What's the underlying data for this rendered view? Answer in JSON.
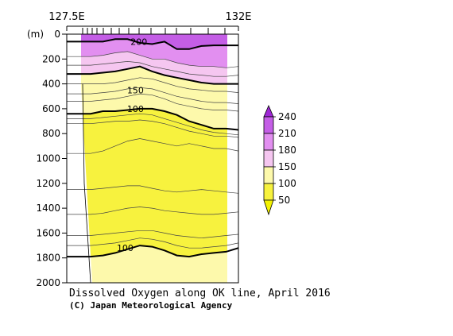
{
  "chart_data": {
    "type": "heatmap",
    "title": "Dissolved Oxygen along OK line, April 2016",
    "credit": "(C) Japan Meteorological Agency",
    "x_range_labels": [
      "127.5E",
      "132E"
    ],
    "y_unit_label": "(m)",
    "y_ticks": [
      0,
      200,
      400,
      600,
      800,
      1000,
      1200,
      1400,
      1600,
      1800,
      2000
    ],
    "ylim": [
      0,
      2000
    ],
    "colorbar_levels": [
      50,
      100,
      150,
      180,
      210,
      240
    ],
    "colors": {
      "lt50": "#f3f200",
      "b50_100": "#f7f23e",
      "b100_150": "#fdf9ab",
      "b150_180": "#f5c6f0",
      "b180_210": "#e28ff0",
      "b210_240": "#c45ee6",
      "gt240": "#9f26d6"
    },
    "contour_labels": [
      {
        "value": "200",
        "x_frac": 0.42,
        "depth": 60
      },
      {
        "value": "150",
        "x_frac": 0.4,
        "depth": 450
      },
      {
        "value": "100",
        "x_frac": 0.4,
        "depth": 600
      },
      {
        "value": "100",
        "x_frac": 0.34,
        "depth": 1720
      }
    ],
    "bold_contours": [
      {
        "value": 200,
        "depths": [
          60,
          60,
          40,
          40,
          70,
          80,
          60,
          120,
          120,
          95,
          90,
          90,
          90
        ]
      },
      {
        "value": 150,
        "depths": [
          320,
          310,
          300,
          280,
          260,
          300,
          330,
          350,
          370,
          390,
          400,
          400,
          400
        ]
      },
      {
        "value": 100,
        "depths": [
          640,
          620,
          620,
          610,
          600,
          600,
          620,
          650,
          700,
          730,
          760,
          760,
          770
        ]
      },
      {
        "value": 100,
        "depths": [
          1790,
          1780,
          1760,
          1730,
          1700,
          1710,
          1740,
          1780,
          1790,
          1770,
          1760,
          1750,
          1720
        ]
      }
    ],
    "thin_contours": [
      {
        "depths": [
          180,
          170,
          150,
          140,
          170,
          200,
          200,
          230,
          250,
          260,
          260,
          270,
          260
        ]
      },
      {
        "depths": [
          250,
          240,
          230,
          220,
          230,
          260,
          280,
          300,
          320,
          330,
          340,
          340,
          330
        ]
      },
      {
        "depths": [
          400,
          400,
          390,
          370,
          350,
          360,
          390,
          420,
          440,
          450,
          460,
          460,
          470
        ]
      },
      {
        "depths": [
          480,
          470,
          460,
          440,
          430,
          440,
          470,
          500,
          520,
          540,
          550,
          550,
          560
        ]
      },
      {
        "depths": [
          540,
          530,
          520,
          500,
          480,
          490,
          520,
          560,
          580,
          600,
          610,
          610,
          620
        ]
      },
      {
        "depths": [
          680,
          670,
          660,
          650,
          640,
          650,
          680,
          710,
          740,
          770,
          790,
          800,
          810
        ]
      },
      {
        "depths": [
          720,
          710,
          700,
          700,
          690,
          700,
          720,
          750,
          780,
          800,
          820,
          820,
          830
        ]
      },
      {
        "depths": [
          960,
          940,
          900,
          860,
          840,
          860,
          880,
          900,
          880,
          900,
          920,
          920,
          940
        ]
      },
      {
        "depths": [
          1250,
          1240,
          1230,
          1220,
          1220,
          1240,
          1260,
          1270,
          1260,
          1250,
          1260,
          1270,
          1280
        ]
      },
      {
        "depths": [
          1450,
          1440,
          1420,
          1400,
          1390,
          1400,
          1420,
          1430,
          1440,
          1450,
          1450,
          1440,
          1430
        ]
      },
      {
        "depths": [
          1620,
          1610,
          1600,
          1590,
          1580,
          1580,
          1600,
          1620,
          1630,
          1640,
          1630,
          1620,
          1610
        ]
      },
      {
        "depths": [
          1700,
          1690,
          1680,
          1660,
          1640,
          1650,
          1670,
          1700,
          1720,
          1720,
          1710,
          1700,
          1680
        ]
      }
    ],
    "bottom_profile_depths": [
      0,
      600,
      1000,
      1200,
      1600,
      2000
    ]
  }
}
